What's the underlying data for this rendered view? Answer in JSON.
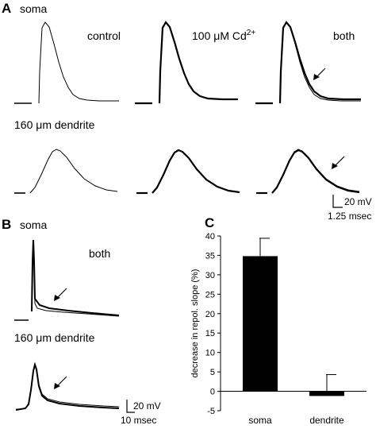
{
  "panels": {
    "a": {
      "letter": "A",
      "soma_label": "soma",
      "dendrite_label_num": "160",
      "dendrite_label_unit": "μm dendrite",
      "col_labels": {
        "control": "control",
        "cd_prefix": "100 ",
        "cd_unit": "μM Cd",
        "cd_sup": "2+",
        "both": "both"
      },
      "scalebar": {
        "v": "20 mV",
        "t": "1.25 msec"
      }
    },
    "b": {
      "letter": "B",
      "soma_label": "soma",
      "both_label": "both",
      "dendrite_label_num": "160",
      "dendrite_label_unit": "μm dendrite",
      "scalebar": {
        "v": "20 mV",
        "t": "10 msec"
      }
    },
    "c": {
      "letter": "C"
    }
  },
  "chart_data": {
    "type": "bar",
    "categories": [
      "soma",
      "dendrite"
    ],
    "values": [
      34.8,
      -1.2
    ],
    "error_plus": [
      4.6,
      5.5
    ],
    "ylabel": "decrease in repol. slope  (%)",
    "ylim": [
      -5,
      40
    ],
    "yticks": [
      -5,
      0,
      5,
      10,
      15,
      20,
      25,
      30,
      35,
      40
    ],
    "bar_color": "#000000"
  }
}
